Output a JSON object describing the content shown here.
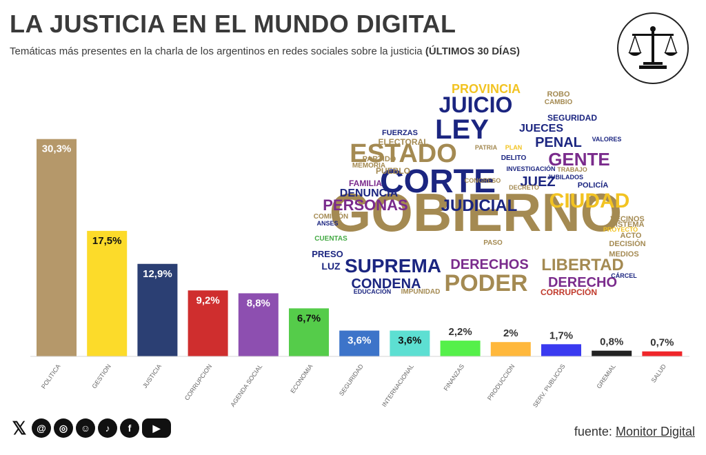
{
  "header": {
    "title": "LA JUSTICIA EN EL MUNDO DIGITAL",
    "subtitle": "Temáticas más presentes en la charla de los argentinos en redes sociales sobre la justicia",
    "subtitle_bold": "(ÚLTIMOS 30 DÍAS)"
  },
  "logo": {
    "icon": "scales-of-justice-icon"
  },
  "wordcloud": [
    {
      "text": "GOBIERNO",
      "color": "#a48a52",
      "size": 78
    },
    {
      "text": "CORTE",
      "color": "#1b2580",
      "size": 48
    },
    {
      "text": "ESTADO",
      "color": "#a48a52",
      "size": 38
    },
    {
      "text": "LEY",
      "color": "#1b2580",
      "size": 40
    },
    {
      "text": "JUICIO",
      "color": "#1b2580",
      "size": 32
    },
    {
      "text": "SUPREMA",
      "color": "#1b2580",
      "size": 28
    },
    {
      "text": "PODER",
      "color": "#a48a52",
      "size": 34
    },
    {
      "text": "CIUDAD",
      "color": "#f2c322",
      "size": 30
    },
    {
      "text": "GENTE",
      "color": "#7a2b8c",
      "size": 26
    },
    {
      "text": "JUDICIAL",
      "color": "#1b2580",
      "size": 24
    },
    {
      "text": "PERSONAS",
      "color": "#7a2b8c",
      "size": 22
    },
    {
      "text": "LIBERTAD",
      "color": "#a48a52",
      "size": 24
    },
    {
      "text": "CONDENA",
      "color": "#1b2580",
      "size": 20
    },
    {
      "text": "DERECHOS",
      "color": "#7a2b8c",
      "size": 20
    },
    {
      "text": "DERECHO",
      "color": "#7a2b8c",
      "size": 20
    },
    {
      "text": "PROVINCIA",
      "color": "#f2c322",
      "size": 18
    },
    {
      "text": "PENAL",
      "color": "#1b2580",
      "size": 20
    },
    {
      "text": "JUECES",
      "color": "#1b2580",
      "size": 16
    },
    {
      "text": "JUEZ",
      "color": "#1b2580",
      "size": 20
    },
    {
      "text": "DENUNCIA",
      "color": "#1b2580",
      "size": 16
    },
    {
      "text": "SEGURIDAD",
      "color": "#1b2580",
      "size": 12
    },
    {
      "text": "CORRUPCIÓN",
      "color": "#c0392b",
      "size": 12
    },
    {
      "text": "FAMILIA",
      "color": "#7a2b8c",
      "size": 12
    },
    {
      "text": "PUEBLO",
      "color": "#a48a52",
      "size": 12
    },
    {
      "text": "ELECTORAL",
      "color": "#a48a52",
      "size": 12
    },
    {
      "text": "FUERZAS",
      "color": "#1b2580",
      "size": 11
    },
    {
      "text": "POLICÍA",
      "color": "#1b2580",
      "size": 11
    },
    {
      "text": "LUZ",
      "color": "#1b2580",
      "size": 14
    },
    {
      "text": "PRESO",
      "color": "#1b2580",
      "size": 13
    },
    {
      "text": "MEDIOS",
      "color": "#a48a52",
      "size": 11
    },
    {
      "text": "SISTEMA",
      "color": "#a48a52",
      "size": 11
    },
    {
      "text": "DECISIÓN",
      "color": "#a48a52",
      "size": 11
    },
    {
      "text": "VECINOS",
      "color": "#a48a52",
      "size": 11
    },
    {
      "text": "ACTO",
      "color": "#a48a52",
      "size": 11
    },
    {
      "text": "PARTIDO",
      "color": "#a48a52",
      "size": 11
    },
    {
      "text": "MEMORIA",
      "color": "#a48a52",
      "size": 10
    },
    {
      "text": "CAMBIO",
      "color": "#a48a52",
      "size": 10
    },
    {
      "text": "ROBO",
      "color": "#a48a52",
      "size": 11
    },
    {
      "text": "DELITO",
      "color": "#1b2580",
      "size": 10
    },
    {
      "text": "CUENTAS",
      "color": "#44aa44",
      "size": 10
    },
    {
      "text": "COMISIÓN",
      "color": "#a48a52",
      "size": 10
    },
    {
      "text": "IMPUNIDAD",
      "color": "#a48a52",
      "size": 10
    },
    {
      "text": "PASO",
      "color": "#a48a52",
      "size": 10
    },
    {
      "text": "EDUCACIÓN",
      "color": "#1b2580",
      "size": 9
    },
    {
      "text": "ANSES",
      "color": "#1b2580",
      "size": 9
    },
    {
      "text": "CÁRCEL",
      "color": "#1b2580",
      "size": 9
    },
    {
      "text": "TRABAJO",
      "color": "#a48a52",
      "size": 9
    },
    {
      "text": "INVESTIGACIÓN",
      "color": "#1b2580",
      "size": 9
    },
    {
      "text": "JUBILADOS",
      "color": "#1b2580",
      "size": 9
    },
    {
      "text": "DECRETO",
      "color": "#a48a52",
      "size": 9
    },
    {
      "text": "PATRIA",
      "color": "#a48a52",
      "size": 9
    },
    {
      "text": "VALORES",
      "color": "#1b2580",
      "size": 9
    },
    {
      "text": "PLAN",
      "color": "#f2c322",
      "size": 9
    },
    {
      "text": "PROYECTO",
      "color": "#f2c322",
      "size": 9
    },
    {
      "text": "CONGRESO",
      "color": "#a48a52",
      "size": 9
    }
  ],
  "chart_data": {
    "type": "bar",
    "title": "",
    "xlabel": "",
    "ylabel": "",
    "ylim": [
      0,
      32
    ],
    "grid": false,
    "categories": [
      "POLITICA",
      "GESTION",
      "JUSTICIA",
      "CORRUPCION",
      "AGENDA SOCIAL",
      "ECONOMIA",
      "SEGURIDAD",
      "INTERNACIONAL",
      "FINANZAS",
      "PRODUCCION",
      "SERV. PUBLICOS",
      "GREMIAL",
      "SALUD"
    ],
    "values": [
      30.3,
      17.5,
      12.9,
      9.2,
      8.8,
      6.7,
      3.6,
      3.6,
      2.2,
      2.0,
      1.7,
      0.8,
      0.7
    ],
    "labels": [
      "30,3%",
      "17,5%",
      "12,9%",
      "9,2%",
      "8,8%",
      "6,7%",
      "3,6%",
      "3,6%",
      "2,2%",
      "2%",
      "1,7%",
      "0,8%",
      "0,7%"
    ],
    "label_inside": [
      true,
      true,
      true,
      true,
      true,
      true,
      true,
      true,
      false,
      false,
      false,
      false,
      false
    ],
    "label_colors": [
      "#ffffff",
      "#111111",
      "#ffffff",
      "#ffffff",
      "#ffffff",
      "#111111",
      "#ffffff",
      "#111111",
      "#333333",
      "#333333",
      "#333333",
      "#333333",
      "#333333"
    ],
    "colors": [
      "#b5986a",
      "#fcdb2a",
      "#2b3f73",
      "#cf2e2e",
      "#8d4fb0",
      "#55cc4a",
      "#3d74c9",
      "#5ddfd2",
      "#55f04a",
      "#ffb83c",
      "#3a3af0",
      "#222222",
      "#f0262a"
    ]
  },
  "social": {
    "icons": [
      "x-icon",
      "threads-icon",
      "instagram-icon",
      "newsletter-icon",
      "tiktok-icon",
      "facebook-icon",
      "youtube-icon"
    ],
    "glyphs": [
      "𝕏",
      "@",
      "◎",
      "☺",
      "♪",
      "f",
      "▶"
    ]
  },
  "source": {
    "prefix": "fuente:",
    "name": "Monitor Digital"
  }
}
